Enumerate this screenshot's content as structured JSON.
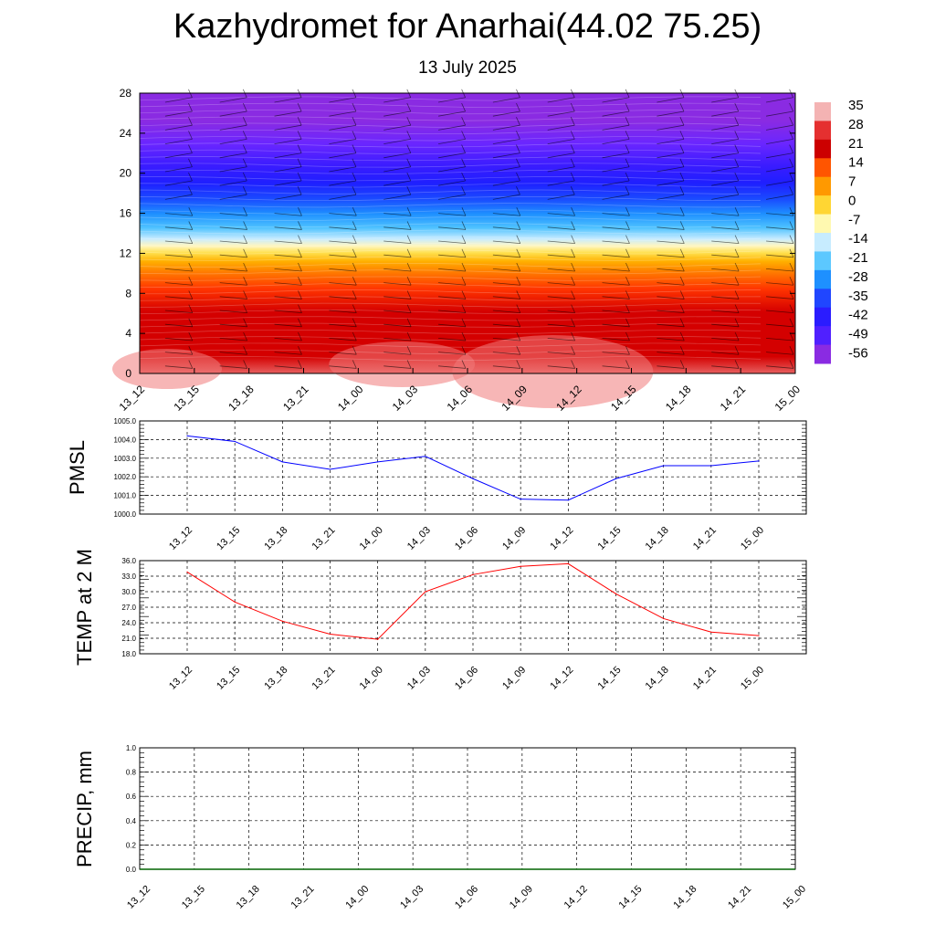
{
  "title": "Kazhydromet for Anarhai(44.02 75.25)",
  "subtitle": "13 July 2025",
  "colors": {
    "pmsl_line": "#0000ff",
    "temp_line": "#ff0000",
    "precip_line": "#006400",
    "grid": "#000000"
  },
  "chart_data": [
    {
      "type": "heatmap",
      "name": "temperature cross-section with wind barbs",
      "x_tick_labels": [
        "13_12",
        "13_15",
        "13_18",
        "13_21",
        "14_00",
        "14_03",
        "14_06",
        "14_09",
        "14_12",
        "14_15",
        "14_18",
        "14_21",
        "15_00"
      ],
      "y_ticks": [
        0,
        4,
        8,
        12,
        16,
        20,
        24,
        28
      ],
      "ylim": [
        0,
        28
      ],
      "colorbar_labels": [
        "35",
        "28",
        "21",
        "14",
        "7",
        "0",
        "-7",
        "-14",
        "-21",
        "-28",
        "-35",
        "-42",
        "-49",
        "-56"
      ],
      "colorbar_colors": [
        "#f4b3b3",
        "#e53030",
        "#cc0000",
        "#ff5500",
        "#ff9900",
        "#ffd633",
        "#fff9b0",
        "#c7ecff",
        "#5cc8ff",
        "#1e90ff",
        "#2046ff",
        "#2a1cff",
        "#5020ff",
        "#8a2be2"
      ],
      "grid": false
    },
    {
      "type": "line",
      "ylabel": "PMSL",
      "x_tick_labels": [
        "13_12",
        "13_15",
        "13_18",
        "13_21",
        "14_00",
        "14_03",
        "14_06",
        "14_09",
        "14_12",
        "14_15",
        "14_18",
        "14_21",
        "15_00"
      ],
      "y_tick_labels": [
        "1000.0",
        "1001.0",
        "1002.0",
        "1003.0",
        "1004.0",
        "1005.0"
      ],
      "ylim": [
        1000.0,
        1005.0
      ],
      "series": [
        {
          "values": [
            1004.2,
            1003.9,
            1002.8,
            1002.4,
            1002.8,
            1003.1,
            1001.9,
            1000.8,
            1000.75,
            1001.9,
            1002.6,
            1002.6,
            1002.85
          ]
        }
      ],
      "grid": true
    },
    {
      "type": "line",
      "ylabel": "TEMP at 2 M",
      "x_tick_labels": [
        "13_12",
        "13_15",
        "13_18",
        "13_21",
        "14_00",
        "14_03",
        "14_06",
        "14_09",
        "14_12",
        "14_15",
        "14_18",
        "14_21",
        "15_00"
      ],
      "y_tick_labels": [
        "18.0",
        "21.0",
        "24.0",
        "27.0",
        "30.0",
        "33.0",
        "36.0"
      ],
      "ylim": [
        18.0,
        36.0
      ],
      "series": [
        {
          "values": [
            33.8,
            28.0,
            24.3,
            21.8,
            20.8,
            30.0,
            33.3,
            34.9,
            35.4,
            29.6,
            24.8,
            22.2,
            21.5
          ]
        }
      ],
      "grid": true
    },
    {
      "type": "line",
      "ylabel": "PRECIP, mm",
      "x_tick_labels": [
        "13_12",
        "13_15",
        "13_18",
        "13_21",
        "14_00",
        "14_03",
        "14_06",
        "14_09",
        "14_12",
        "14_15",
        "14_18",
        "14_21",
        "15_00"
      ],
      "y_tick_labels": [
        "0.0",
        "0.2",
        "0.4",
        "0.6",
        "0.8",
        "1.0"
      ],
      "ylim": [
        0.0,
        1.0
      ],
      "series": [
        {
          "values": [
            0,
            0,
            0,
            0,
            0,
            0,
            0,
            0,
            0,
            0,
            0,
            0,
            0
          ]
        }
      ],
      "grid": true
    }
  ]
}
